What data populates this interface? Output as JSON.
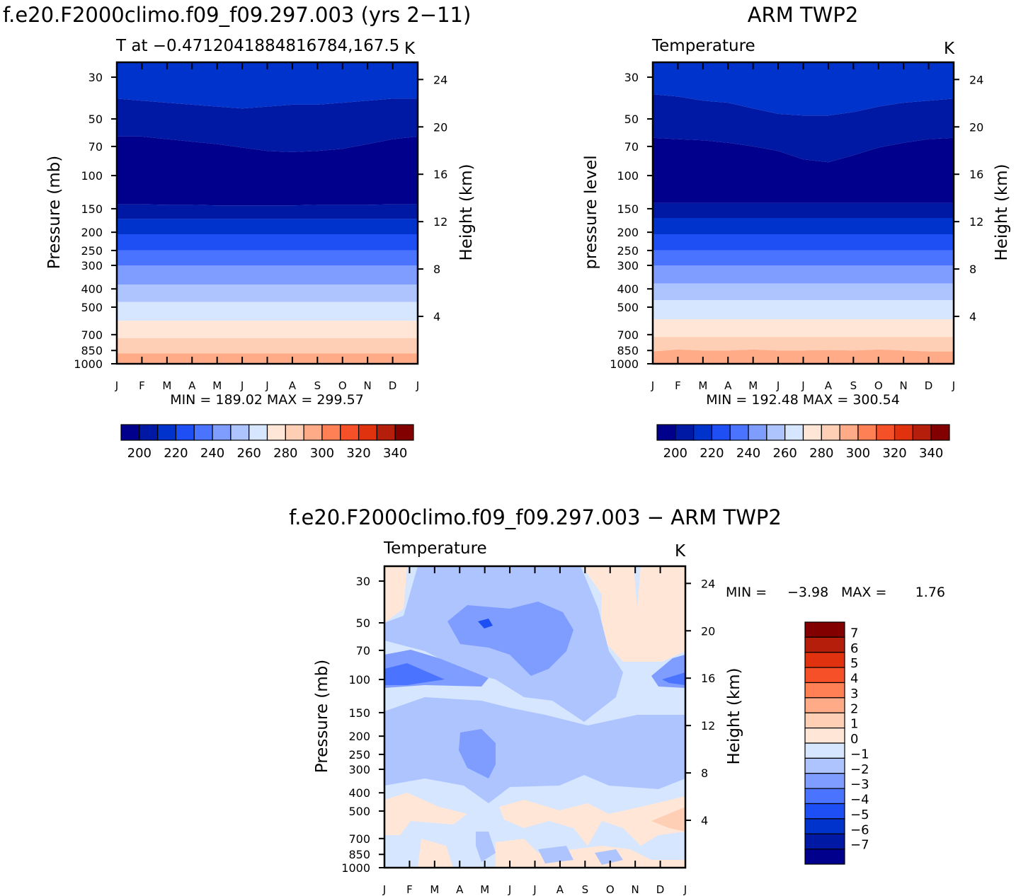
{
  "chart_data": [
    {
      "type": "heatmap",
      "panel_title": "f.e20.F2000climo.f09_f09.297.003 (yrs 2−11)",
      "left_label": "T at −0.4712041884816784,167.5",
      "right_label": "K",
      "ylabel": "Pressure (mb)",
      "y2label": "Height (km)",
      "months": [
        "J",
        "F",
        "M",
        "A",
        "M",
        "J",
        "J",
        "A",
        "S",
        "O",
        "N",
        "D",
        "J"
      ],
      "pressure_ticks": [
        "30",
        "50",
        "70",
        "100",
        "150",
        "200",
        "250",
        "300",
        "400",
        "500",
        "700",
        "850",
        "1000"
      ],
      "height_ticks": [
        "24",
        "20",
        "16",
        "12",
        "8",
        "4"
      ],
      "stats": "MIN = 189.02 MAX = 299.57",
      "min": 189.02,
      "max": 299.57,
      "colorbar": {
        "orientation": "horizontal",
        "tick_labels": [
          "200",
          "220",
          "240",
          "260",
          "280",
          "300",
          "320",
          "340"
        ],
        "colors": [
          "#00008c",
          "#0019a5",
          "#0033cc",
          "#1e4ff5",
          "#4a74ff",
          "#7f9cff",
          "#aec4ff",
          "#d6e6ff",
          "#ffe6d6",
          "#ffcfb5",
          "#ffab87",
          "#ff8055",
          "#f55028",
          "#e1320f",
          "#b41e0a",
          "#820000"
        ]
      }
    },
    {
      "type": "heatmap",
      "panel_title": "ARM TWP2",
      "left_label": "Temperature",
      "right_label": "K",
      "ylabel": "pressure level",
      "y2label": "Height (km)",
      "months": [
        "J",
        "F",
        "M",
        "A",
        "M",
        "J",
        "J",
        "A",
        "S",
        "O",
        "N",
        "D",
        "J"
      ],
      "pressure_ticks": [
        "30",
        "50",
        "70",
        "100",
        "150",
        "200",
        "250",
        "300",
        "400",
        "500",
        "700",
        "850",
        "1000"
      ],
      "height_ticks": [
        "24",
        "20",
        "16",
        "12",
        "8",
        "4"
      ],
      "stats": "MIN = 192.48 MAX = 300.54",
      "min": 192.48,
      "max": 300.54,
      "colorbar": {
        "orientation": "horizontal",
        "tick_labels": [
          "200",
          "220",
          "240",
          "260",
          "280",
          "300",
          "320",
          "340"
        ],
        "colors": [
          "#00008c",
          "#0019a5",
          "#0033cc",
          "#1e4ff5",
          "#4a74ff",
          "#7f9cff",
          "#aec4ff",
          "#d6e6ff",
          "#ffe6d6",
          "#ffcfb5",
          "#ffab87",
          "#ff8055",
          "#f55028",
          "#e1320f",
          "#b41e0a",
          "#820000"
        ]
      }
    },
    {
      "type": "heatmap",
      "panel_title": "f.e20.F2000climo.f09_f09.297.003 − ARM TWP2",
      "left_label": "Temperature",
      "right_label": "K",
      "ylabel": "Pressure (mb)",
      "y2label": "Height (km)",
      "months": [
        "J",
        "F",
        "M",
        "A",
        "M",
        "J",
        "J",
        "A",
        "S",
        "O",
        "N",
        "D",
        "J"
      ],
      "pressure_ticks": [
        "30",
        "50",
        "70",
        "100",
        "150",
        "200",
        "250",
        "300",
        "400",
        "500",
        "700",
        "850",
        "1000"
      ],
      "height_ticks": [
        "24",
        "20",
        "16",
        "12",
        "8",
        "4"
      ],
      "stats_min_label": "MIN =",
      "stats_min_value": "−3.98",
      "stats_max_label": "MAX =",
      "stats_max_value": "1.76",
      "min": -3.98,
      "max": 1.76,
      "colorbar": {
        "orientation": "vertical",
        "tick_labels": [
          "7",
          "6",
          "5",
          "4",
          "3",
          "2",
          "1",
          "0",
          "−1",
          "−2",
          "−3",
          "−4",
          "−5",
          "−6",
          "−7"
        ],
        "colors": [
          "#820000",
          "#b41e0a",
          "#e1320f",
          "#f55028",
          "#ff8055",
          "#ffab87",
          "#ffcfb5",
          "#ffe6d6",
          "#d6e6ff",
          "#aec4ff",
          "#7f9cff",
          "#4a74ff",
          "#1e4ff5",
          "#0033cc",
          "#0019a5",
          "#00008c"
        ]
      }
    }
  ]
}
